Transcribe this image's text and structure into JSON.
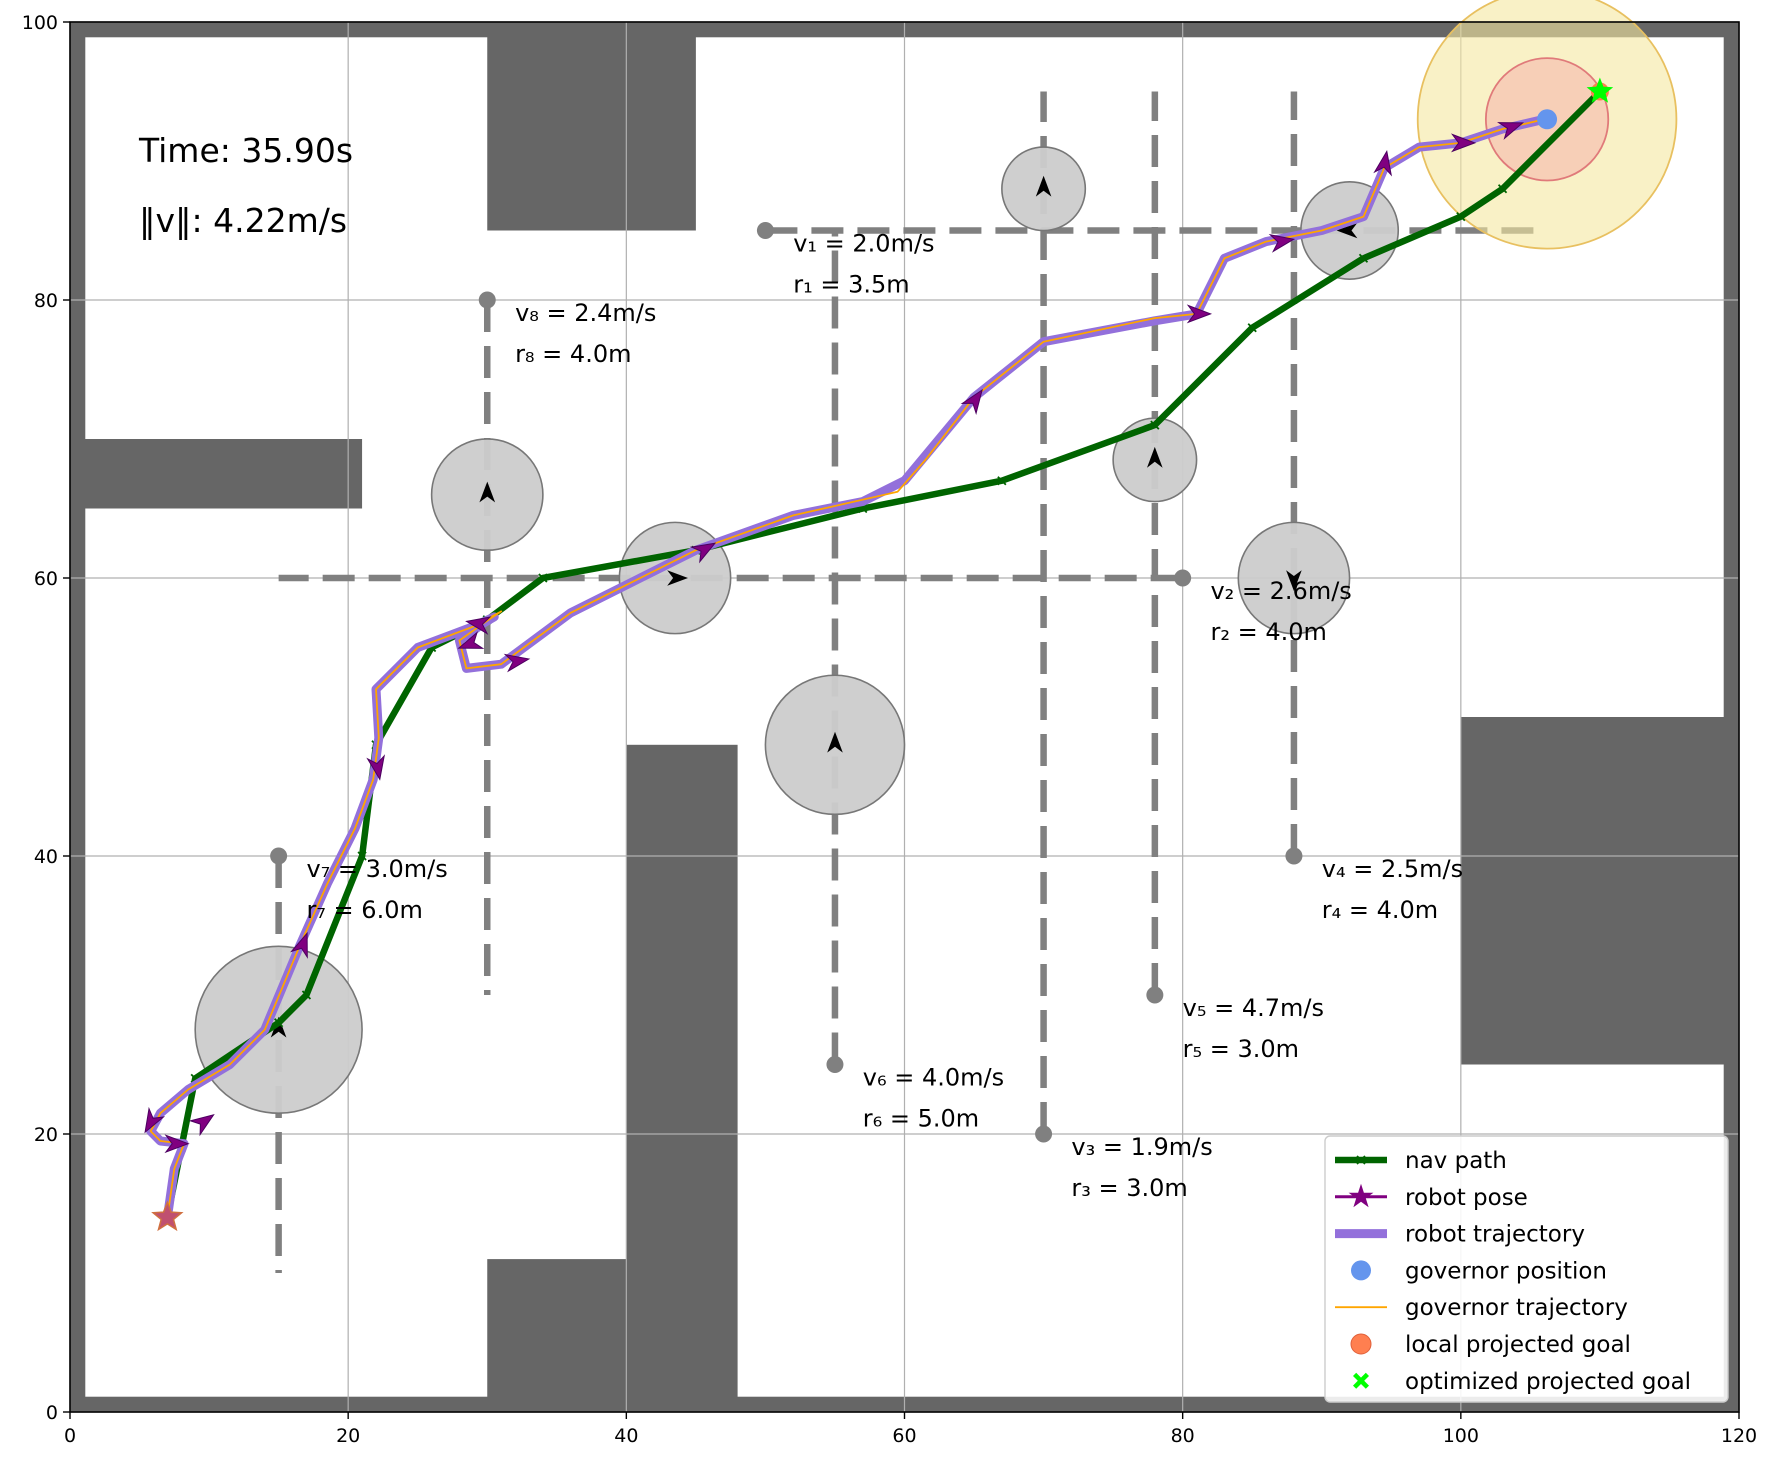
{
  "chart_data": {
    "type": "line",
    "title": "",
    "xlabel": "",
    "ylabel": "",
    "xlim": [
      0,
      120
    ],
    "ylim": [
      0,
      100
    ],
    "xticks": [
      0,
      20,
      40,
      60,
      80,
      100,
      120
    ],
    "yticks": [
      0,
      20,
      40,
      60,
      80,
      100
    ],
    "grid": true,
    "legend_position": "lower-right",
    "time_label": "Time: 35.90s",
    "speed_label": "‖v‖: 4.22m/s",
    "colors": {
      "wall": "#666666",
      "nav_path": "#006400",
      "robot_pose": "#800080",
      "robot_trajectory": "#9370db",
      "governor_position": "#6495ed",
      "governor_trajectory": "#ffa500",
      "local_projected_goal": "#ff7f50",
      "optimized_projected_goal": "#00ff00",
      "obstacle_track": "#808080",
      "obstacle_disk": "#cccccc"
    },
    "walls": [
      {
        "x0": 0,
        "y0": 0,
        "x1": 120,
        "y1": 1.1
      },
      {
        "x0": 0,
        "y0": 98.9,
        "x1": 120,
        "y1": 100
      },
      {
        "x0": 0,
        "y0": 0,
        "x1": 1.1,
        "y1": 100
      },
      {
        "x0": 118.9,
        "y0": 0,
        "x1": 120,
        "y1": 100
      },
      {
        "x0": 30,
        "y0": 85,
        "x1": 45,
        "y1": 100
      },
      {
        "x0": 0,
        "y0": 65,
        "x1": 21,
        "y1": 70
      },
      {
        "x0": 40,
        "y0": 0,
        "x1": 48,
        "y1": 48
      },
      {
        "x0": 30,
        "y0": 0,
        "x1": 40,
        "y1": 11
      },
      {
        "x0": 100,
        "y0": 25,
        "x1": 120,
        "y1": 50
      }
    ],
    "obstacles": [
      {
        "id": 1,
        "start": [
          50,
          85
        ],
        "end": [
          106,
          85
        ],
        "pos": [
          92,
          85
        ],
        "radius": 3.5,
        "heading": 180,
        "label_pos": [
          52,
          83.5
        ],
        "speed_label": "v₁ = 2.0m/s",
        "radius_label": "r₁ = 3.5m"
      },
      {
        "id": 2,
        "start": [
          80,
          60
        ],
        "end": [
          15,
          60
        ],
        "pos": [
          43.5,
          60
        ],
        "radius": 4.0,
        "heading": 0,
        "label_pos": [
          82,
          58.5
        ],
        "speed_label": "v₂ = 2.6m/s",
        "radius_label": "r₂ = 4.0m"
      },
      {
        "id": 3,
        "start": [
          70,
          20
        ],
        "end": [
          70,
          95
        ],
        "pos": [
          70,
          88
        ],
        "radius": 3.0,
        "heading": 90,
        "label_pos": [
          72,
          18.5
        ],
        "speed_label": "v₃ = 1.9m/s",
        "radius_label": "r₃ = 3.0m"
      },
      {
        "id": 4,
        "start": [
          88,
          40
        ],
        "end": [
          88,
          95
        ],
        "pos": [
          88,
          60
        ],
        "radius": 4.0,
        "heading": -90,
        "label_pos": [
          90,
          38.5
        ],
        "speed_label": "v₄ = 2.5m/s",
        "radius_label": "r₄ = 4.0m"
      },
      {
        "id": 5,
        "start": [
          78,
          30
        ],
        "end": [
          78,
          95
        ],
        "pos": [
          78,
          68.5
        ],
        "radius": 3.0,
        "heading": 90,
        "label_pos": [
          80,
          28.5
        ],
        "speed_label": "v₅ = 4.7m/s",
        "radius_label": "r₅ = 3.0m"
      },
      {
        "id": 6,
        "start": [
          55,
          25
        ],
        "end": [
          55,
          85
        ],
        "pos": [
          55,
          48
        ],
        "radius": 5.0,
        "heading": 90,
        "label_pos": [
          57,
          23.5
        ],
        "speed_label": "v₆ = 4.0m/s",
        "radius_label": "r₆ = 5.0m"
      },
      {
        "id": 7,
        "start": [
          15,
          40
        ],
        "end": [
          15,
          10
        ],
        "pos": [
          15,
          27.5
        ],
        "radius": 6.0,
        "heading": 90,
        "label_pos": [
          17,
          38.5
        ],
        "speed_label": "v₇ = 3.0m/s",
        "radius_label": "r₇ = 6.0m"
      },
      {
        "id": 8,
        "start": [
          30,
          80
        ],
        "end": [
          30,
          30
        ],
        "pos": [
          30,
          66
        ],
        "radius": 4.0,
        "heading": 90,
        "label_pos": [
          32,
          78.5
        ],
        "speed_label": "v₈ = 2.4m/s",
        "radius_label": "r₈ = 4.0m"
      }
    ],
    "nav_path": [
      [
        7,
        14
      ],
      [
        8,
        19
      ],
      [
        9,
        24
      ],
      [
        15,
        28
      ],
      [
        17,
        30
      ],
      [
        21,
        40
      ],
      [
        22,
        48
      ],
      [
        26,
        55
      ],
      [
        30,
        57
      ],
      [
        34,
        60
      ],
      [
        45,
        62
      ],
      [
        57,
        65
      ],
      [
        67,
        67
      ],
      [
        78,
        71
      ],
      [
        85,
        78
      ],
      [
        93,
        83
      ],
      [
        100,
        86
      ],
      [
        103,
        88
      ],
      [
        110,
        95
      ]
    ],
    "robot_trajectory": [
      [
        7,
        14
      ],
      [
        7.5,
        17.5
      ],
      [
        8.2,
        19.3
      ],
      [
        6.5,
        19.5
      ],
      [
        5.8,
        20.2
      ],
      [
        6.5,
        21.5
      ],
      [
        8.5,
        23.2
      ],
      [
        11.5,
        25
      ],
      [
        14,
        27.5
      ],
      [
        16.5,
        33.5
      ],
      [
        18.5,
        38
      ],
      [
        20.5,
        42
      ],
      [
        21.8,
        45.5
      ],
      [
        22.2,
        48.5
      ],
      [
        22,
        52
      ],
      [
        25,
        55
      ],
      [
        29,
        56.5
      ],
      [
        30.5,
        57.2
      ],
      [
        29.8,
        56.8
      ],
      [
        28,
        55.5
      ],
      [
        28.5,
        53.5
      ],
      [
        31,
        53.8
      ],
      [
        36,
        57.5
      ],
      [
        41,
        60
      ],
      [
        45,
        62
      ],
      [
        52,
        64.5
      ],
      [
        57,
        65.5
      ],
      [
        60,
        67
      ],
      [
        65,
        73
      ],
      [
        70,
        77
      ],
      [
        78,
        78.5
      ],
      [
        81,
        79
      ],
      [
        83,
        83
      ],
      [
        86,
        84.2
      ],
      [
        90,
        85
      ],
      [
        93,
        86
      ],
      [
        94.5,
        89.5
      ],
      [
        97,
        91
      ],
      [
        100,
        91.3
      ],
      [
        103,
        92.3
      ],
      [
        106,
        93
      ]
    ],
    "governor_trajectory": [
      [
        7,
        14
      ],
      [
        7.5,
        17.5
      ],
      [
        8.2,
        19.3
      ],
      [
        6.5,
        19.5
      ],
      [
        5.8,
        20.2
      ],
      [
        6.5,
        21.5
      ],
      [
        8.5,
        23.2
      ],
      [
        11.5,
        25
      ],
      [
        14,
        27.5
      ],
      [
        16.5,
        33.5
      ],
      [
        18.5,
        38
      ],
      [
        20.5,
        42
      ],
      [
        21.8,
        45.5
      ],
      [
        22.2,
        48.5
      ],
      [
        22,
        52
      ],
      [
        25,
        55
      ],
      [
        29,
        56.5
      ],
      [
        31,
        57.6
      ],
      [
        29.8,
        56.8
      ],
      [
        28,
        55.5
      ],
      [
        28.5,
        53.5
      ],
      [
        31,
        53.8
      ],
      [
        36,
        57.5
      ],
      [
        41,
        60
      ],
      [
        45,
        62
      ],
      [
        52,
        64.5
      ],
      [
        59.5,
        66.2
      ],
      [
        61.5,
        68.5
      ],
      [
        65,
        73
      ],
      [
        70,
        77
      ],
      [
        78,
        78.7
      ],
      [
        81,
        79
      ],
      [
        83,
        83
      ],
      [
        86,
        84.2
      ],
      [
        90,
        85
      ],
      [
        93,
        86
      ],
      [
        94.5,
        89.5
      ],
      [
        97,
        91
      ],
      [
        100,
        91.3
      ],
      [
        103,
        92.3
      ],
      [
        106,
        93
      ]
    ],
    "robot_poses": [
      {
        "pos": [
          7.5,
          19.3
        ],
        "heading": 0
      },
      {
        "pos": [
          9.5,
          20.8
        ],
        "heading": 35
      },
      {
        "pos": [
          5.9,
          21
        ],
        "heading": -120
      },
      {
        "pos": [
          16.7,
          33.5
        ],
        "heading": 70
      },
      {
        "pos": [
          22.1,
          46.5
        ],
        "heading": -80
      },
      {
        "pos": [
          29.5,
          56.7
        ],
        "heading": 170
      },
      {
        "pos": [
          28.9,
          55.3
        ],
        "heading": 200
      },
      {
        "pos": [
          32,
          54
        ],
        "heading": 10
      },
      {
        "pos": [
          45.5,
          62
        ],
        "heading": 30
      },
      {
        "pos": [
          65,
          72.7
        ],
        "heading": 55
      },
      {
        "pos": [
          81,
          79
        ],
        "heading": 0
      },
      {
        "pos": [
          87,
          84.2
        ],
        "heading": 10
      },
      {
        "pos": [
          94.5,
          89.7
        ],
        "heading": 80
      },
      {
        "pos": [
          100,
          91.3
        ],
        "heading": 0
      },
      {
        "pos": [
          103.5,
          92.4
        ],
        "heading": 20
      }
    ],
    "start_pose": [
      7,
      14
    ],
    "governor_position": [
      106.2,
      93
    ],
    "governor_ball_radius": 9.3,
    "local_goal_ball_radius": 4.4,
    "local_projected_goal": [
      110,
      95
    ],
    "optimized_projected_goal": [
      110,
      95
    ],
    "legend": [
      {
        "key": "nav_path",
        "label": "nav path"
      },
      {
        "key": "robot_pose",
        "label": "robot pose"
      },
      {
        "key": "robot_trajectory",
        "label": "robot trajectory"
      },
      {
        "key": "governor_position",
        "label": "governor position"
      },
      {
        "key": "governor_trajectory",
        "label": "governor trajectory"
      },
      {
        "key": "local_projected_goal",
        "label": "local projected goal"
      },
      {
        "key": "optimized_projected_goal",
        "label": "optimized projected goal"
      }
    ]
  }
}
